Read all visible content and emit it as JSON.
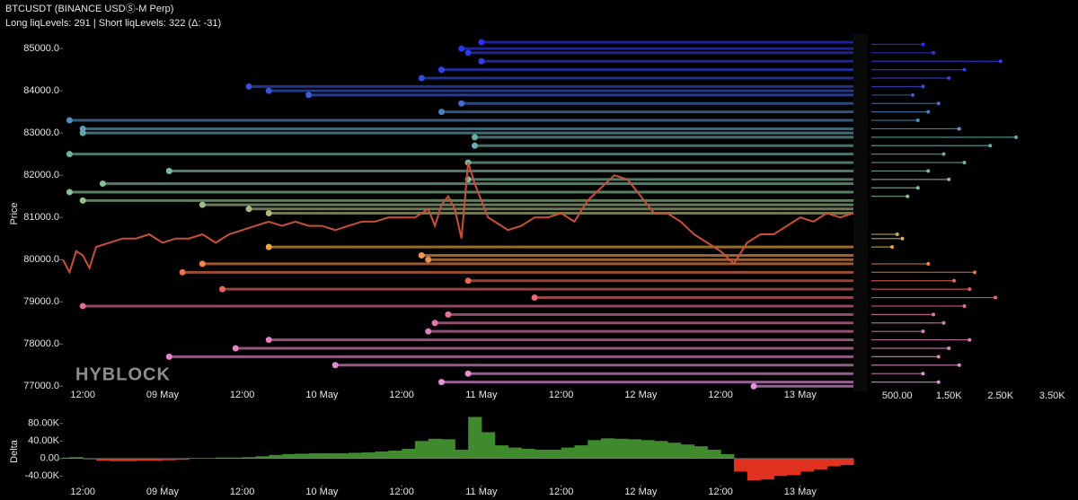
{
  "chart_data": [
    {
      "type": "line",
      "title": "BTCUSDT (BINANCE USDⓈ-M Perp)",
      "subtitle": "Long liqLevels: 291 | Short liqLevels: 322 (Δ: -31)",
      "y_label": "Price",
      "watermark": "HYBLOCK",
      "xlim": [
        9,
        128
      ],
      "xticks": [
        {
          "value": 12,
          "label": "12:00"
        },
        {
          "value": 24,
          "label": "09 May"
        },
        {
          "value": 36,
          "label": "12:00"
        },
        {
          "value": 48,
          "label": "10 May"
        },
        {
          "value": 60,
          "label": "12:00"
        },
        {
          "value": 72,
          "label": "11 May"
        },
        {
          "value": 84,
          "label": "12:00"
        },
        {
          "value": 96,
          "label": "12 May"
        },
        {
          "value": 108,
          "label": "12:00"
        },
        {
          "value": 120,
          "label": "13 May"
        }
      ],
      "ylim": [
        76900,
        85300
      ],
      "yticks": [
        {
          "value": 77000,
          "label": "77000.0"
        },
        {
          "value": 78000,
          "label": "78000.0"
        },
        {
          "value": 79000,
          "label": "79000.0"
        },
        {
          "value": 80000,
          "label": "80000.0"
        },
        {
          "value": 81000,
          "label": "81000.0"
        },
        {
          "value": 82000,
          "label": "82000.0"
        },
        {
          "value": 83000,
          "label": "83000.0"
        },
        {
          "value": 84000,
          "label": "84000.0"
        },
        {
          "value": 85000,
          "label": "85000.0"
        }
      ],
      "x": [
        9,
        10,
        11,
        12,
        13,
        14,
        16,
        18,
        20,
        22,
        24,
        26,
        28,
        30,
        32,
        34,
        36,
        38,
        40,
        42,
        44,
        46,
        48,
        50,
        52,
        54,
        56,
        58,
        60,
        62,
        64,
        65,
        66,
        67,
        68,
        69,
        70,
        71,
        72,
        73,
        74,
        76,
        78,
        80,
        82,
        84,
        86,
        88,
        90,
        92,
        94,
        96,
        98,
        100,
        102,
        104,
        106,
        108,
        110,
        112,
        114,
        116,
        118,
        120,
        122,
        124,
        126,
        128
      ],
      "series": [
        {
          "color": "#c8503a",
          "values": [
            80000,
            79700,
            80200,
            80100,
            79800,
            80300,
            80400,
            80500,
            80500,
            80600,
            80400,
            80500,
            80500,
            80600,
            80400,
            80600,
            80700,
            80800,
            80900,
            80800,
            80900,
            80800,
            80800,
            80700,
            80800,
            80900,
            80900,
            81000,
            81000,
            81000,
            81200,
            80800,
            81300,
            81500,
            81200,
            80500,
            82300,
            81800,
            81400,
            81000,
            80900,
            80700,
            80800,
            81000,
            81000,
            81100,
            80900,
            81400,
            81700,
            82000,
            81900,
            81500,
            81100,
            81100,
            80900,
            80600,
            80400,
            80200,
            79900,
            80400,
            80600,
            80600,
            80800,
            81000,
            80900,
            81100,
            81000,
            81100
          ]
        }
      ],
      "levels": {
        "prices": [
          85150,
          85000,
          84900,
          84700,
          84500,
          84300,
          84100,
          84000,
          83900,
          83700,
          83500,
          83300,
          83100,
          83000,
          82900,
          82700,
          82500,
          82300,
          82100,
          81900,
          81800,
          81600,
          81400,
          81300,
          81200,
          81100,
          80300,
          80100,
          80000,
          79900,
          79700,
          79500,
          79300,
          79100,
          78900,
          78700,
          78500,
          78300,
          78100,
          77900,
          77700,
          77500,
          77300,
          77100,
          77000
        ],
        "starts": [
          72,
          69,
          70,
          72,
          66,
          63,
          37,
          40,
          46,
          69,
          66,
          10,
          12,
          12,
          71,
          71,
          10,
          70,
          25,
          70,
          15,
          10,
          12,
          30,
          37,
          40,
          40,
          63,
          64,
          30,
          27,
          70,
          33,
          80,
          12,
          67,
          65,
          64,
          40,
          35,
          25,
          50,
          70,
          66,
          113
        ]
      }
    },
    {
      "type": "bar",
      "xlim": [
        0,
        4000
      ],
      "xticks": [
        {
          "value": 500,
          "label": "500.00"
        },
        {
          "value": 1500,
          "label": "1.50K"
        },
        {
          "value": 2500,
          "label": "2.50K"
        },
        {
          "value": 3500,
          "label": "3.50K"
        }
      ],
      "y": [
        85100,
        84900,
        84700,
        84500,
        84300,
        84100,
        83900,
        83700,
        83500,
        83300,
        83100,
        82900,
        82700,
        82500,
        82300,
        82100,
        81900,
        81700,
        81500,
        80600,
        80500,
        80300,
        79900,
        79700,
        79500,
        79300,
        79100,
        78900,
        78700,
        78500,
        78300,
        78100,
        77900,
        77700,
        77500,
        77300,
        77100
      ],
      "values": [
        1000,
        1200,
        2500,
        1800,
        1500,
        1000,
        800,
        1300,
        1100,
        900,
        1700,
        2800,
        2300,
        1400,
        1800,
        1100,
        1500,
        900,
        700,
        500,
        600,
        400,
        1100,
        2000,
        1600,
        1900,
        2400,
        1800,
        1200,
        1400,
        1000,
        1900,
        1500,
        1300,
        1700,
        1000,
        1300
      ]
    },
    {
      "type": "bar",
      "y_label": "Delta",
      "positive_color": "#3f8a2c",
      "negative_color": "#e0321e",
      "xlim": [
        9,
        128
      ],
      "xticks": [
        {
          "value": 12,
          "label": "12:00"
        },
        {
          "value": 24,
          "label": "09 May"
        },
        {
          "value": 36,
          "label": "12:00"
        },
        {
          "value": 48,
          "label": "10 May"
        },
        {
          "value": 60,
          "label": "12:00"
        },
        {
          "value": 72,
          "label": "11 May"
        },
        {
          "value": 84,
          "label": "12:00"
        },
        {
          "value": 96,
          "label": "12 May"
        },
        {
          "value": 108,
          "label": "12:00"
        },
        {
          "value": 120,
          "label": "13 May"
        }
      ],
      "ylim": [
        -60000,
        100000
      ],
      "yticks": [
        {
          "value": -40000,
          "label": "-40.00K"
        },
        {
          "value": 0,
          "label": "0.00"
        },
        {
          "value": 40000,
          "label": "40.00K"
        },
        {
          "value": 80000,
          "label": "80.00K"
        }
      ],
      "x": [
        9,
        11,
        13,
        15,
        17,
        19,
        21,
        23,
        25,
        27,
        29,
        31,
        33,
        35,
        37,
        39,
        41,
        43,
        45,
        47,
        49,
        51,
        53,
        55,
        57,
        59,
        61,
        63,
        65,
        67,
        69,
        71,
        73,
        75,
        77,
        79,
        81,
        83,
        85,
        87,
        89,
        91,
        93,
        95,
        97,
        99,
        101,
        103,
        105,
        107,
        109,
        111,
        113,
        115,
        117,
        119,
        121,
        123,
        125,
        127
      ],
      "values": [
        2000,
        3000,
        -2000,
        -5000,
        -6000,
        -6000,
        -5000,
        -5000,
        -4000,
        -3000,
        1000,
        1000,
        2000,
        2000,
        3000,
        5000,
        8000,
        10000,
        11000,
        12000,
        12000,
        12000,
        13000,
        14000,
        16000,
        18000,
        22000,
        40000,
        45000,
        44000,
        20000,
        95000,
        60000,
        30000,
        25000,
        22000,
        20000,
        20000,
        25000,
        30000,
        42000,
        46000,
        45000,
        44000,
        42000,
        40000,
        36000,
        32000,
        28000,
        20000,
        10000,
        -30000,
        -50000,
        -48000,
        -40000,
        -38000,
        -30000,
        -25000,
        -18000,
        -15000
      ]
    }
  ]
}
